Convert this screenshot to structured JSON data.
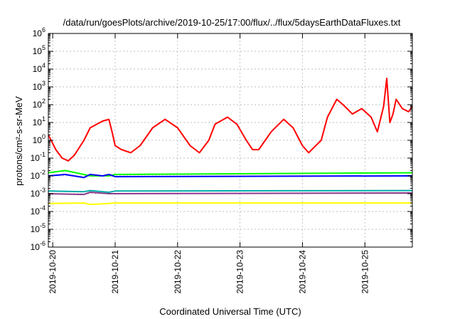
{
  "chart_data": {
    "type": "line",
    "title": "/data/run/goesPlots/archive/2019-10-25/17:00/flux/../flux/5daysEarthDataFluxes.txt",
    "xlabel": "Coordinated Universal Time (UTC)",
    "ylabel": "protons/cm²-s-sr-MeV",
    "yscale": "log",
    "ylim_exp": [
      -6,
      6
    ],
    "xlim_days": [
      19.93,
      25.76
    ],
    "grid": true,
    "legend": "none",
    "x_ticks": [
      {
        "day": 20,
        "label": "2019-10-20"
      },
      {
        "day": 21,
        "label": "2019-10-21"
      },
      {
        "day": 22,
        "label": "2019-10-22"
      },
      {
        "day": 23,
        "label": "2019-10-23"
      },
      {
        "day": 24,
        "label": "2019-10-24"
      },
      {
        "day": 25,
        "label": "2019-10-25"
      }
    ],
    "series": [
      {
        "color": "#ff0000",
        "x": [
          19.93,
          20.05,
          20.15,
          20.25,
          20.35,
          20.5,
          20.6,
          20.8,
          20.9,
          20.95,
          21.0,
          21.1,
          21.25,
          21.4,
          21.6,
          21.8,
          22.0,
          22.2,
          22.35,
          22.5,
          22.6,
          22.8,
          22.95,
          23.1,
          23.2,
          23.3,
          23.5,
          23.7,
          23.85,
          24.0,
          24.1,
          24.15,
          24.3,
          24.4,
          24.55,
          24.65,
          24.8,
          24.95,
          25.1,
          25.2,
          25.3,
          25.35,
          25.4,
          25.45,
          25.5,
          25.6,
          25.7,
          25.76
        ],
        "y": [
          2,
          0.3,
          0.1,
          0.07,
          0.15,
          1,
          5,
          12,
          15,
          3,
          0.5,
          0.3,
          0.2,
          0.5,
          5,
          15,
          5,
          0.5,
          0.2,
          1,
          8,
          20,
          8,
          1,
          0.3,
          0.3,
          3,
          15,
          5,
          0.5,
          0.2,
          0.3,
          1,
          20,
          200,
          100,
          30,
          60,
          20,
          3,
          80,
          3000,
          10,
          30,
          200,
          60,
          40,
          80
        ]
      },
      {
        "color": "#00ff00",
        "x": [
          19.93,
          20.2,
          20.5,
          20.6,
          20.8,
          20.9,
          21.0,
          25.76
        ],
        "y": [
          0.015,
          0.02,
          0.012,
          0.01,
          0.01,
          0.01,
          0.012,
          0.015
        ]
      },
      {
        "color": "#0000ff",
        "x": [
          19.93,
          20.2,
          20.5,
          20.6,
          20.8,
          20.9,
          21.0,
          25.76
        ],
        "y": [
          0.01,
          0.012,
          0.008,
          0.012,
          0.01,
          0.012,
          0.009,
          0.01
        ]
      },
      {
        "color": "#00aaaa",
        "x": [
          19.93,
          20.5,
          20.6,
          20.9,
          21.0,
          25.76
        ],
        "y": [
          0.0014,
          0.0013,
          0.0015,
          0.0012,
          0.0014,
          0.0015
        ]
      },
      {
        "color": "#8b3a8b",
        "x": [
          19.93,
          20.5,
          20.6,
          20.9,
          21.0,
          25.76
        ],
        "y": [
          0.001,
          0.0009,
          0.0012,
          0.001,
          0.001,
          0.0011
        ]
      },
      {
        "color": "#ffff00",
        "x": [
          19.93,
          20.5,
          20.6,
          20.9,
          21.0,
          25.76
        ],
        "y": [
          0.00028,
          0.0003,
          0.00025,
          0.00028,
          0.0003,
          0.0003
        ]
      }
    ]
  }
}
